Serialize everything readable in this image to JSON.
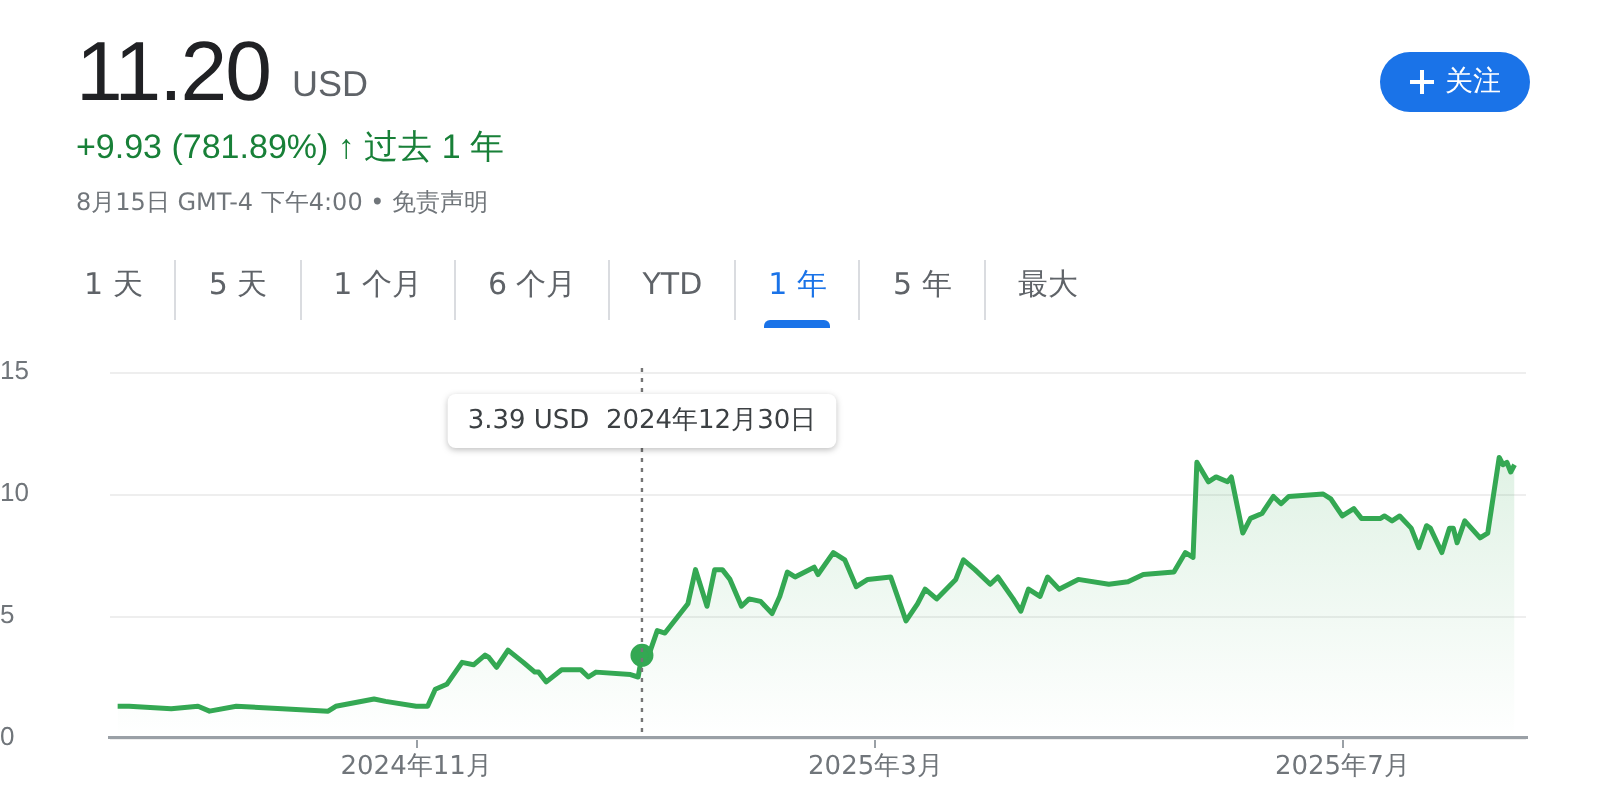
{
  "chart_data": {
    "type": "area",
    "title": "11.20",
    "subtitle": "+9.93 (781.89%) ↑ 过去 1 年",
    "annotations": [
      "USD",
      "8月15日 GMT-4 下午4:00 • 免责声明",
      "3.39 USD  2024年12月30日",
      "1 天",
      "5 天",
      "1 个月",
      "6 个月",
      "YTD",
      "1 年",
      "5 年",
      "最大",
      "关注"
    ],
    "ref_lines": [
      {
        "axis": "x",
        "value": "2024-12-30",
        "color": "#757575",
        "line_style": "dotted"
      }
    ],
    "xlim": [
      "2024-08-13",
      "2025-08-18"
    ],
    "xticks": [
      {
        "value": "2024-11-01",
        "label": "2024年11月"
      },
      {
        "value": "2025-03-01",
        "label": "2025年3月"
      },
      {
        "value": "2025-07-01",
        "label": "2025年7月"
      }
    ],
    "ylim": [
      0,
      15
    ],
    "yticks": [
      0,
      5,
      10,
      15
    ],
    "grid": "y",
    "legend": false,
    "marker": "none",
    "line_style": "solid",
    "series": [
      {
        "color": "#34a853",
        "x": [
          "2024-08-15",
          "2024-08-18",
          "2024-08-29",
          "2024-09-05",
          "2024-09-08",
          "2024-09-15",
          "2024-09-27",
          "2024-10-09",
          "2024-10-11",
          "2024-10-21",
          "2024-10-24",
          "2024-11-01",
          "2024-11-04",
          "2024-11-06",
          "2024-11-09",
          "2024-11-13",
          "2024-11-16",
          "2024-11-19",
          "2024-11-20",
          "2024-11-22",
          "2024-11-25",
          "2024-11-29",
          "2024-12-02",
          "2024-12-03",
          "2024-12-05",
          "2024-12-09",
          "2024-12-14",
          "2024-12-16",
          "2024-12-18",
          "2024-12-27",
          "2024-12-29",
          "2024-12-30",
          "2025-01-01",
          "2025-01-03",
          "2025-01-05",
          "2025-01-07",
          "2025-01-11",
          "2025-01-13",
          "2025-01-16",
          "2025-01-18",
          "2025-01-20",
          "2025-01-22",
          "2025-01-25",
          "2025-01-27",
          "2025-01-30",
          "2025-02-02",
          "2025-02-04",
          "2025-02-06",
          "2025-02-08",
          "2025-02-13",
          "2025-02-14",
          "2025-02-18",
          "2025-02-21",
          "2025-02-24",
          "2025-02-27",
          "2025-03-05",
          "2025-03-09",
          "2025-03-12",
          "2025-03-14",
          "2025-03-17",
          "2025-03-22",
          "2025-03-24",
          "2025-03-27",
          "2025-03-31",
          "2025-04-02",
          "2025-04-06",
          "2025-04-08",
          "2025-04-10",
          "2025-04-13",
          "2025-04-15",
          "2025-04-18",
          "2025-04-23",
          "2025-05-01",
          "2025-05-06",
          "2025-05-10",
          "2025-05-18",
          "2025-05-21",
          "2025-05-23",
          "2025-05-24",
          "2025-05-27",
          "2025-05-29",
          "2025-06-01",
          "2025-06-02",
          "2025-06-05",
          "2025-06-07",
          "2025-06-10",
          "2025-06-13",
          "2025-06-15",
          "2025-06-17",
          "2025-06-26",
          "2025-06-28",
          "2025-07-01",
          "2025-07-04",
          "2025-07-06",
          "2025-07-11",
          "2025-07-12",
          "2025-07-14",
          "2025-07-16",
          "2025-07-19",
          "2025-07-21",
          "2025-07-23",
          "2025-07-24",
          "2025-07-27",
          "2025-07-29",
          "2025-07-30",
          "2025-07-31",
          "2025-08-02",
          "2025-08-06",
          "2025-08-08",
          "2025-08-11",
          "2025-08-12",
          "2025-08-13",
          "2025-08-14",
          "2025-08-15"
        ],
        "values": [
          1.3,
          1.3,
          1.2,
          1.3,
          1.1,
          1.3,
          1.2,
          1.1,
          1.3,
          1.6,
          1.5,
          1.3,
          1.3,
          2.0,
          2.2,
          3.1,
          3.0,
          3.4,
          3.3,
          2.9,
          3.6,
          3.1,
          2.7,
          2.7,
          2.3,
          2.8,
          2.8,
          2.5,
          2.7,
          2.6,
          2.5,
          3.39,
          3.5,
          4.4,
          4.3,
          4.7,
          5.5,
          6.9,
          5.4,
          6.9,
          6.9,
          6.5,
          5.4,
          5.7,
          5.6,
          5.1,
          5.8,
          6.8,
          6.6,
          7.0,
          6.7,
          7.6,
          7.3,
          6.2,
          6.5,
          6.6,
          4.8,
          5.5,
          6.1,
          5.7,
          6.5,
          7.3,
          6.9,
          6.3,
          6.6,
          5.7,
          5.2,
          6.1,
          5.8,
          6.6,
          6.1,
          6.5,
          6.3,
          6.4,
          6.7,
          6.8,
          7.6,
          7.4,
          11.3,
          10.5,
          10.7,
          10.5,
          10.7,
          8.4,
          9.0,
          9.2,
          9.9,
          9.6,
          9.9,
          10.0,
          9.8,
          9.1,
          9.4,
          9.0,
          9.0,
          9.1,
          8.9,
          9.1,
          8.6,
          7.8,
          8.7,
          8.6,
          7.6,
          8.6,
          8.6,
          8.0,
          8.9,
          8.2,
          8.4,
          11.5,
          11.2,
          11.3,
          10.9,
          11.2
        ]
      }
    ]
  }
}
